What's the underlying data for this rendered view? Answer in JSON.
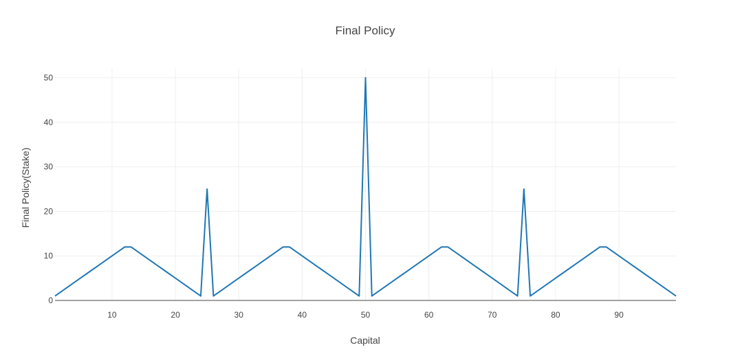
{
  "chart_data": {
    "type": "line",
    "title": "Final Policy",
    "xlabel": "Capital",
    "ylabel": "Final Policy(Stake)",
    "xlim": [
      1,
      99
    ],
    "ylim": [
      0,
      52
    ],
    "x_ticks": [
      10,
      20,
      30,
      40,
      50,
      60,
      70,
      80,
      90
    ],
    "y_ticks": [
      0,
      10,
      20,
      30,
      40,
      50
    ],
    "grid": true,
    "series": [
      {
        "color": "#1f77b4",
        "x": [
          1,
          2,
          3,
          4,
          5,
          6,
          7,
          8,
          9,
          10,
          11,
          12,
          13,
          14,
          15,
          16,
          17,
          18,
          19,
          20,
          21,
          22,
          23,
          24,
          25,
          26,
          27,
          28,
          29,
          30,
          31,
          32,
          33,
          34,
          35,
          36,
          37,
          38,
          39,
          40,
          41,
          42,
          43,
          44,
          45,
          46,
          47,
          48,
          49,
          50,
          51,
          52,
          53,
          54,
          55,
          56,
          57,
          58,
          59,
          60,
          61,
          62,
          63,
          64,
          65,
          66,
          67,
          68,
          69,
          70,
          71,
          72,
          73,
          74,
          75,
          76,
          77,
          78,
          79,
          80,
          81,
          82,
          83,
          84,
          85,
          86,
          87,
          88,
          89,
          90,
          91,
          92,
          93,
          94,
          95,
          96,
          97,
          98,
          99
        ],
        "values": [
          1,
          2,
          3,
          4,
          5,
          6,
          7,
          8,
          9,
          10,
          11,
          12,
          12,
          11,
          10,
          9,
          8,
          7,
          6,
          5,
          4,
          3,
          2,
          1,
          25,
          1,
          2,
          3,
          4,
          5,
          6,
          7,
          8,
          9,
          10,
          11,
          12,
          12,
          11,
          10,
          9,
          8,
          7,
          6,
          5,
          4,
          3,
          2,
          1,
          50,
          1,
          2,
          3,
          4,
          5,
          6,
          7,
          8,
          9,
          10,
          11,
          12,
          12,
          11,
          10,
          9,
          8,
          7,
          6,
          5,
          4,
          3,
          2,
          1,
          25,
          1,
          2,
          3,
          4,
          5,
          6,
          7,
          8,
          9,
          10,
          11,
          12,
          12,
          11,
          10,
          9,
          8,
          7,
          6,
          5,
          4,
          3,
          2,
          1
        ]
      }
    ]
  }
}
